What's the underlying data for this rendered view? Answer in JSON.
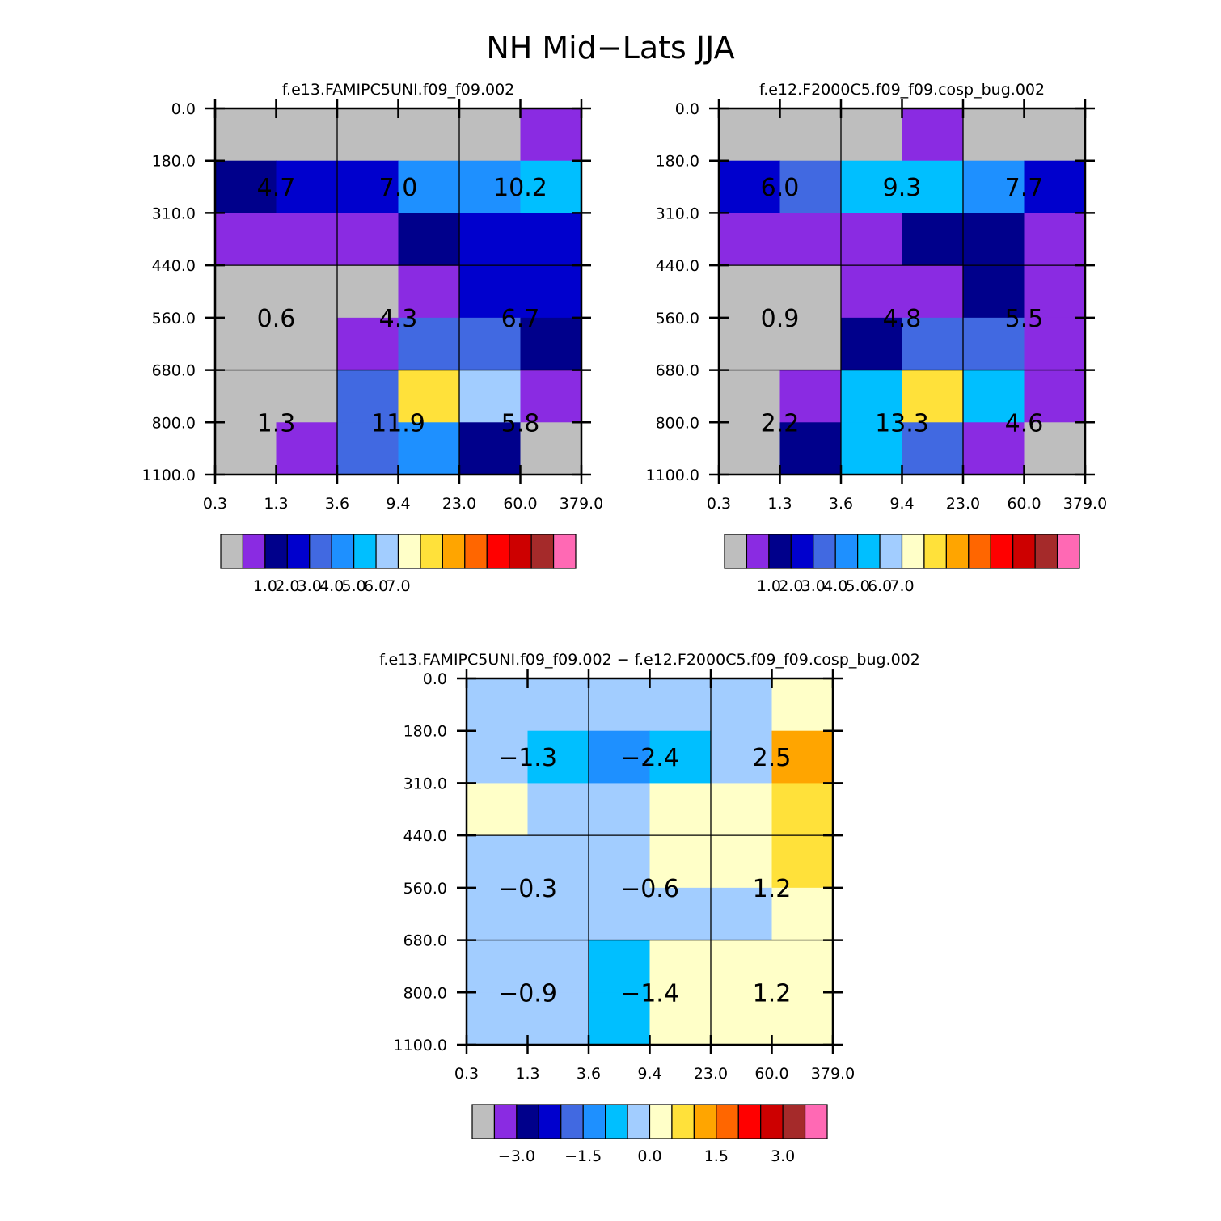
{
  "title": "NH Mid−Lats JJA",
  "colors": {
    "palette": [
      "#bebebe",
      "#8a2be2",
      "#00008b",
      "#0000cd",
      "#4169e1",
      "#1e90ff",
      "#00bfff",
      "#a2cdff",
      "#ffffc8",
      "#ffe13a",
      "#ffa500",
      "#ff6600",
      "#ff0000",
      "#cd0000",
      "#a52a2a",
      "#ff69b4"
    ],
    "line": "#000000"
  },
  "chart_data": [
    {
      "id": "panel1",
      "type": "heatmap",
      "title": "f.e13.FAMIPC5UNI.f09_f09.002",
      "x_ticks": [
        "0.3",
        "1.3",
        "3.6",
        "9.4",
        "23.0",
        "60.0",
        "379.0"
      ],
      "y_ticks": [
        "0.0",
        "180.0",
        "310.0",
        "440.0",
        "560.0",
        "680.0",
        "800.0",
        "1100.0"
      ],
      "cell_color_index": [
        [
          0,
          0,
          0,
          0,
          0,
          1
        ],
        [
          2,
          3,
          3,
          5,
          5,
          6
        ],
        [
          1,
          1,
          1,
          2,
          3,
          3
        ],
        [
          0,
          0,
          0,
          1,
          3,
          3
        ],
        [
          0,
          0,
          1,
          4,
          4,
          2
        ],
        [
          0,
          0,
          4,
          9,
          7,
          1
        ],
        [
          0,
          1,
          4,
          5,
          2,
          0
        ]
      ],
      "cell_labels": [
        {
          "text": "4.7",
          "col": 1,
          "row": 1.5
        },
        {
          "text": "7.0",
          "col": 3,
          "row": 1.5
        },
        {
          "text": "10.2",
          "col": 5,
          "row": 1.5
        },
        {
          "text": "0.6",
          "col": 1,
          "row": 4
        },
        {
          "text": "4.3",
          "col": 3,
          "row": 4
        },
        {
          "text": "6.7",
          "col": 5,
          "row": 4
        },
        {
          "text": "1.3",
          "col": 1,
          "row": 6
        },
        {
          "text": "11.9",
          "col": 3,
          "row": 6
        },
        {
          "text": "5.8",
          "col": 5,
          "row": 6
        }
      ],
      "colorbar_labels": [
        "1.0",
        "2.0",
        "3.0",
        "4.0",
        "5.0",
        "6.0",
        "7.0"
      ]
    },
    {
      "id": "panel2",
      "type": "heatmap",
      "title": "f.e12.F2000C5.f09_f09.cosp_bug.002",
      "x_ticks": [
        "0.3",
        "1.3",
        "3.6",
        "9.4",
        "23.0",
        "60.0",
        "379.0"
      ],
      "y_ticks": [
        "0.0",
        "180.0",
        "310.0",
        "440.0",
        "560.0",
        "680.0",
        "800.0",
        "1100.0"
      ],
      "cell_color_index": [
        [
          0,
          0,
          0,
          1,
          0,
          0
        ],
        [
          3,
          4,
          6,
          6,
          5,
          3
        ],
        [
          1,
          1,
          1,
          2,
          2,
          1
        ],
        [
          0,
          0,
          1,
          1,
          2,
          1
        ],
        [
          0,
          0,
          2,
          4,
          4,
          1
        ],
        [
          0,
          1,
          6,
          9,
          6,
          1
        ],
        [
          0,
          2,
          6,
          4,
          1,
          0
        ]
      ],
      "cell_labels": [
        {
          "text": "6.0",
          "col": 1,
          "row": 1.5
        },
        {
          "text": "9.3",
          "col": 3,
          "row": 1.5
        },
        {
          "text": "7.7",
          "col": 5,
          "row": 1.5
        },
        {
          "text": "0.9",
          "col": 1,
          "row": 4
        },
        {
          "text": "4.8",
          "col": 3,
          "row": 4
        },
        {
          "text": "5.5",
          "col": 5,
          "row": 4
        },
        {
          "text": "2.2",
          "col": 1,
          "row": 6
        },
        {
          "text": "13.3",
          "col": 3,
          "row": 6
        },
        {
          "text": "4.6",
          "col": 5,
          "row": 6
        }
      ],
      "colorbar_labels": [
        "1.0",
        "2.0",
        "3.0",
        "4.0",
        "5.0",
        "6.0",
        "7.0"
      ]
    },
    {
      "id": "panel3",
      "type": "heatmap",
      "title": "f.e13.FAMIPC5UNI.f09_f09.002 − f.e12.F2000C5.f09_f09.cosp_bug.002",
      "x_ticks": [
        "0.3",
        "1.3",
        "3.6",
        "9.4",
        "23.0",
        "60.0",
        "379.0"
      ],
      "y_ticks": [
        "0.0",
        "180.0",
        "310.0",
        "440.0",
        "560.0",
        "680.0",
        "800.0",
        "1100.0"
      ],
      "cell_color_index": [
        [
          7,
          7,
          7,
          7,
          7,
          8
        ],
        [
          7,
          6,
          5,
          6,
          7,
          10
        ],
        [
          8,
          7,
          7,
          8,
          8,
          9
        ],
        [
          7,
          7,
          7,
          8,
          8,
          9
        ],
        [
          7,
          7,
          7,
          7,
          7,
          8
        ],
        [
          7,
          7,
          6,
          8,
          8,
          8
        ],
        [
          7,
          7,
          6,
          8,
          8,
          8
        ]
      ],
      "cell_labels": [
        {
          "text": "−1.3",
          "col": 1,
          "row": 1.5
        },
        {
          "text": "−2.4",
          "col": 3,
          "row": 1.5
        },
        {
          "text": "2.5",
          "col": 5,
          "row": 1.5
        },
        {
          "text": "−0.3",
          "col": 1,
          "row": 4
        },
        {
          "text": "−0.6",
          "col": 3,
          "row": 4
        },
        {
          "text": "1.2",
          "col": 5,
          "row": 4
        },
        {
          "text": "−0.9",
          "col": 1,
          "row": 6
        },
        {
          "text": "−1.4",
          "col": 3,
          "row": 6
        },
        {
          "text": "1.2",
          "col": 5,
          "row": 6
        }
      ],
      "colorbar_labels": [
        "−3.0",
        "−1.5",
        "0.0",
        "1.5",
        "3.0"
      ]
    }
  ]
}
